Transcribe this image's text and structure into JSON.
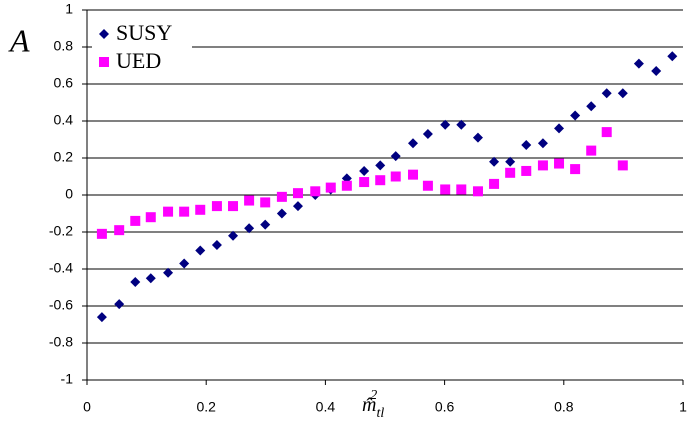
{
  "chart_data": {
    "type": "scatter",
    "y_label": "A",
    "x_label": {
      "base": "m̂",
      "sub": "tl",
      "sup": "2"
    },
    "xlim": [
      0,
      1
    ],
    "xticks": [
      0,
      0.2,
      0.4,
      0.6,
      0.8,
      1
    ],
    "ylim": [
      -1,
      1
    ],
    "yticks": [
      -1,
      -0.8,
      -0.6,
      -0.4,
      -0.2,
      0,
      0.2,
      0.4,
      0.6,
      0.8,
      1
    ],
    "grid": true,
    "legend": "top-left",
    "series": [
      {
        "name": "SUSY",
        "color": "#000080",
        "marker": "diamond",
        "x": [
          0.025,
          0.054,
          0.081,
          0.107,
          0.136,
          0.163,
          0.19,
          0.218,
          0.245,
          0.272,
          0.299,
          0.327,
          0.354,
          0.383,
          0.409,
          0.436,
          0.465,
          0.492,
          0.518,
          0.547,
          0.572,
          0.601,
          0.628,
          0.656,
          0.683,
          0.71,
          0.737,
          0.765,
          0.792,
          0.819,
          0.846,
          0.872,
          0.899,
          0.926,
          0.955,
          0.982
        ],
        "values": [
          -0.66,
          -0.59,
          -0.47,
          -0.45,
          -0.42,
          -0.37,
          -0.3,
          -0.27,
          -0.22,
          -0.18,
          -0.16,
          -0.1,
          -0.06,
          0.0,
          0.03,
          0.09,
          0.13,
          0.16,
          0.21,
          0.28,
          0.33,
          0.38,
          0.38,
          0.31,
          0.18,
          0.18,
          0.27,
          0.28,
          0.36,
          0.43,
          0.48,
          0.55,
          0.55,
          0.71,
          0.67,
          0.75
        ]
      },
      {
        "name": "UED",
        "color": "#ff00ff",
        "marker": "square",
        "x": [
          0.025,
          0.054,
          0.081,
          0.107,
          0.136,
          0.163,
          0.19,
          0.218,
          0.245,
          0.272,
          0.299,
          0.327,
          0.354,
          0.383,
          0.409,
          0.436,
          0.465,
          0.492,
          0.518,
          0.547,
          0.572,
          0.601,
          0.628,
          0.656,
          0.683,
          0.71,
          0.737,
          0.765,
          0.792,
          0.819,
          0.846,
          0.872,
          0.899
        ],
        "values": [
          -0.21,
          -0.19,
          -0.14,
          -0.12,
          -0.09,
          -0.09,
          -0.08,
          -0.06,
          -0.06,
          -0.03,
          -0.04,
          -0.01,
          0.01,
          0.02,
          0.04,
          0.05,
          0.07,
          0.08,
          0.1,
          0.11,
          0.05,
          0.03,
          0.03,
          0.02,
          0.06,
          0.12,
          0.13,
          0.16,
          0.17,
          0.14,
          0.24,
          0.34,
          0.16
        ]
      }
    ]
  }
}
